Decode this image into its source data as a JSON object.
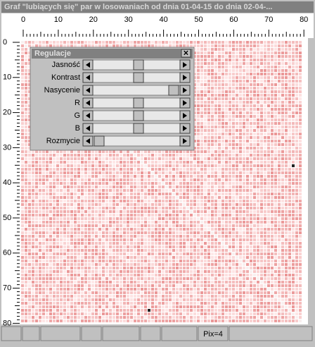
{
  "window": {
    "title": "Graf \"lubiących się\" par w losowaniach od dnia 01-04-15 do dnia 02-04-..."
  },
  "ruler_top": {
    "labels": [
      0,
      10,
      20,
      30,
      40,
      50,
      60,
      70,
      80
    ]
  },
  "ruler_left": {
    "labels": [
      0,
      10,
      20,
      30,
      40,
      50,
      60,
      70,
      80
    ]
  },
  "dialog": {
    "title": "Regulacje",
    "sliders": [
      {
        "label": "Jasność"
      },
      {
        "label": "Kontrast"
      },
      {
        "label": "Nasycenie"
      },
      {
        "label": "R"
      },
      {
        "label": "G"
      },
      {
        "label": "B"
      },
      {
        "label": "Rozmycie"
      }
    ]
  },
  "status": {
    "pix": "Pix=4"
  }
}
